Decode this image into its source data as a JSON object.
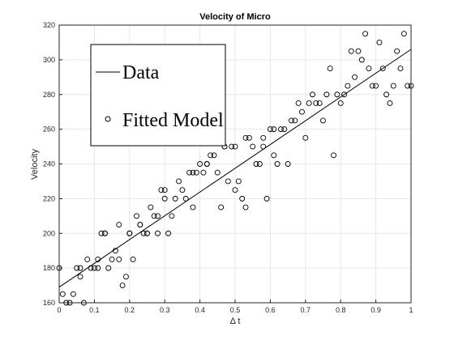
{
  "chart_data": {
    "type": "scatter",
    "title": "Velocity of Micro",
    "xlabel": "Δ t",
    "ylabel": "Velocity",
    "xlim": [
      0,
      1
    ],
    "ylim": [
      160,
      320
    ],
    "xticks": [
      "0",
      "0.1",
      "0.2",
      "0.3",
      "0.4",
      "0.5",
      "0.6",
      "0.7",
      "0.8",
      "0.9",
      "1"
    ],
    "yticks": [
      "160",
      "180",
      "200",
      "220",
      "240",
      "260",
      "280",
      "300",
      "320"
    ],
    "grid": true,
    "legend": {
      "placement": "top-left",
      "entries": [
        {
          "label": "Data",
          "marker": "line"
        },
        {
          "label": "Fitted Model",
          "marker": "circle"
        }
      ]
    },
    "series": [
      {
        "name": "Data",
        "style": "line",
        "color": "#000000",
        "x": [
          0,
          1
        ],
        "y": [
          169,
          306
        ]
      },
      {
        "name": "Fitted Model",
        "style": "circle",
        "color": "#000000",
        "x": [
          0.01,
          0.02,
          0.03,
          0.04,
          0.05,
          0.06,
          0.07,
          0.08,
          0.09,
          0.1,
          0.11,
          0.12,
          0.13,
          0.14,
          0.15,
          0.16,
          0.17,
          0.18,
          0.19,
          0.2,
          0.21,
          0.22,
          0.23,
          0.24,
          0.25,
          0.26,
          0.27,
          0.28,
          0.29,
          0.3,
          0.31,
          0.32,
          0.33,
          0.34,
          0.35,
          0.36,
          0.37,
          0.38,
          0.39,
          0.4,
          0.41,
          0.42,
          0.43,
          0.44,
          0.45,
          0.46,
          0.47,
          0.48,
          0.49,
          0.5,
          0.51,
          0.52,
          0.53,
          0.54,
          0.55,
          0.56,
          0.57,
          0.58,
          0.59,
          0.6,
          0.61,
          0.62,
          0.63,
          0.64,
          0.65,
          0.66,
          0.67,
          0.68,
          0.69,
          0.7,
          0.71,
          0.72,
          0.73,
          0.74,
          0.75,
          0.76,
          0.77,
          0.78,
          0.79,
          0.8,
          0.81,
          0.82,
          0.83,
          0.84,
          0.85,
          0.86,
          0.87,
          0.88,
          0.89,
          0.9,
          0.91,
          0.92,
          0.93,
          0.94,
          0.95,
          0.96,
          0.97,
          0.98,
          0.99,
          1.0,
          0.0,
          0.06,
          0.11,
          0.13,
          0.17,
          0.2,
          0.23,
          0.25,
          0.28,
          0.3,
          0.38,
          0.42,
          0.47,
          0.5,
          0.53,
          0.58,
          0.61
        ],
        "y": [
          165,
          160,
          160,
          165,
          180,
          175,
          160,
          185,
          180,
          180,
          180,
          200,
          200,
          180,
          185,
          190,
          205,
          170,
          175,
          200,
          185,
          210,
          205,
          200,
          200,
          215,
          210,
          200,
          225,
          220,
          200,
          210,
          220,
          230,
          225,
          220,
          235,
          215,
          235,
          240,
          235,
          240,
          245,
          245,
          235,
          215,
          250,
          230,
          250,
          225,
          230,
          220,
          215,
          255,
          250,
          240,
          240,
          255,
          220,
          260,
          245,
          240,
          260,
          260,
          240,
          265,
          265,
          275,
          270,
          255,
          275,
          280,
          275,
          275,
          265,
          280,
          295,
          245,
          280,
          275,
          280,
          285,
          305,
          290,
          305,
          300,
          315,
          295,
          285,
          285,
          310,
          295,
          280,
          275,
          285,
          305,
          295,
          315,
          285,
          285,
          180,
          180,
          185,
          200,
          185,
          200,
          205,
          200,
          210,
          225,
          235,
          240,
          250,
          250,
          255,
          250,
          260
        ]
      }
    ]
  }
}
